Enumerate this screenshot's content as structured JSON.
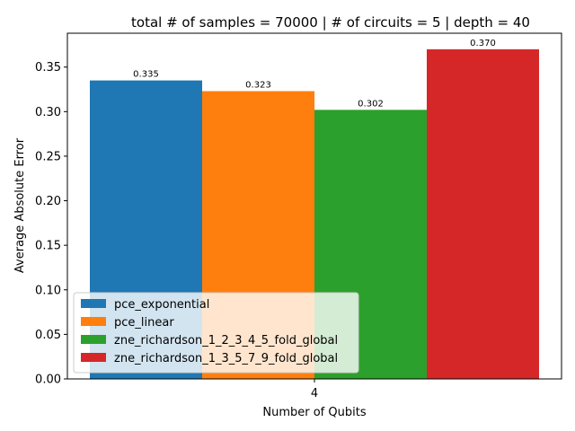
{
  "chart_data": {
    "type": "bar",
    "title": "total # of samples = 70000 | # of circuits = 5 | depth = 40",
    "xlabel": "Number of Qubits",
    "ylabel": "Average Absolute Error",
    "categories": [
      "4"
    ],
    "ylim": [
      0,
      0.388
    ],
    "yticks": [
      "0.00",
      "0.05",
      "0.10",
      "0.15",
      "0.20",
      "0.25",
      "0.30",
      "0.35"
    ],
    "legend_position": "lower-left",
    "grid": false,
    "series": [
      {
        "name": "pce_exponential",
        "values": [
          0.335
        ],
        "label": "0.335",
        "color": "#1f77b4"
      },
      {
        "name": "pce_linear",
        "values": [
          0.323
        ],
        "label": "0.323",
        "color": "#ff7f0e"
      },
      {
        "name": "zne_richardson_1_2_3_4_5_fold_global",
        "values": [
          0.302
        ],
        "label": "0.302",
        "color": "#2ca02c"
      },
      {
        "name": "zne_richardson_1_3_5_7_9_fold_global",
        "values": [
          0.37
        ],
        "label": "0.370",
        "color": "#d62728"
      }
    ]
  }
}
